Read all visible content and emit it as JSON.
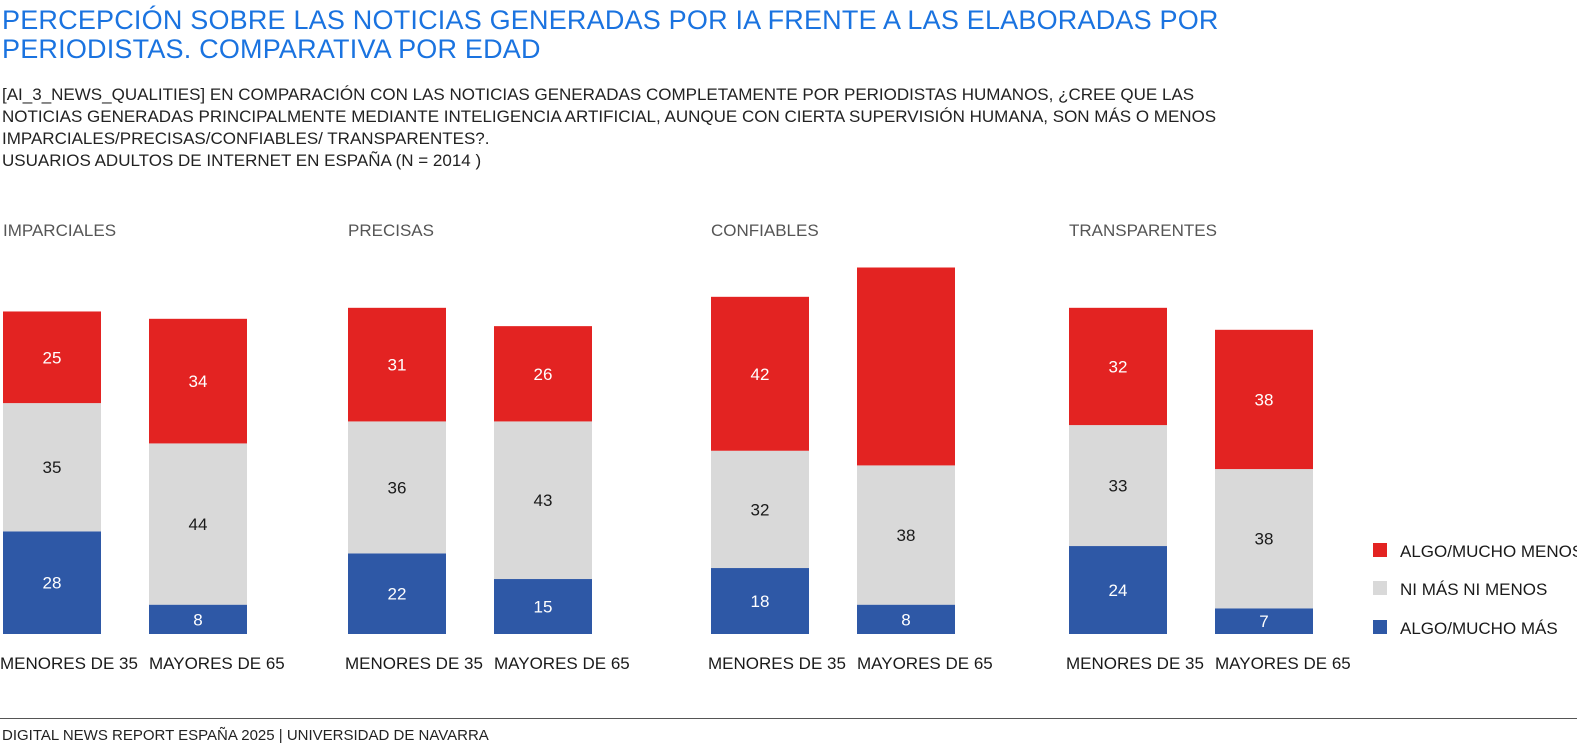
{
  "title": "PERCEPCIÓN SOBRE LAS NOTICIAS GENERADAS POR IA FRENTE A LAS ELABORADAS POR PERIODISTAS. COMPARATIVA POR EDAD",
  "subtitle": "[AI_3_NEWS_QUALITIES] EN COMPARACIÓN CON LAS NOTICIAS GENERADAS COMPLETAMENTE POR PERIODISTAS HUMANOS,  ¿CREE QUE LAS NOTICIAS GENERADAS PRINCIPALMENTE MEDIANTE INTELIGENCIA ARTIFICIAL, AUNQUE CON CIERTA SUPERVISIÓN HUMANA, SON MÁS O MENOS IMPARCIALES/PRECISAS/CONFIABLES/ TRANSPARENTES?.",
  "subtitle2": "USUARIOS ADULTOS DE INTERNET EN ESPAÑA (N = 2014 )",
  "footer": "DIGITAL NEWS REPORT ESPAÑA 2025 | UNIVERSIDAD DE NAVARRA",
  "colors": {
    "title": "#1a73e0",
    "less": "#e32322",
    "neutral": "#d9d9d9",
    "more": "#2e58a6"
  },
  "chart_data": {
    "type": "bar",
    "stacked": true,
    "value_unit": "%",
    "legend_placement": "right",
    "categories": [
      "MENORES DE 35",
      "MAYORES DE 65"
    ],
    "legend": [
      {
        "key": "less",
        "label": "ALGO/MUCHO MENOS"
      },
      {
        "key": "neutral",
        "label": "NI MÁS NI MENOS"
      },
      {
        "key": "more",
        "label": "ALGO/MUCHO MÁS"
      }
    ],
    "panels": [
      {
        "title": "IMPARCIALES",
        "series": [
          {
            "name": "ALGO/MUCHO MÁS",
            "key": "more",
            "values": [
              28,
              8
            ]
          },
          {
            "name": "NI MÁS NI MENOS",
            "key": "neutral",
            "values": [
              35,
              44
            ]
          },
          {
            "name": "ALGO/MUCHO MENOS",
            "key": "less",
            "values": [
              25,
              34
            ]
          }
        ]
      },
      {
        "title": "PRECISAS",
        "series": [
          {
            "name": "ALGO/MUCHO MÁS",
            "key": "more",
            "values": [
              22,
              15
            ]
          },
          {
            "name": "NI MÁS NI MENOS",
            "key": "neutral",
            "values": [
              36,
              43
            ]
          },
          {
            "name": "ALGO/MUCHO MENOS",
            "key": "less",
            "values": [
              31,
              26
            ]
          }
        ]
      },
      {
        "title": "CONFIABLES",
        "series": [
          {
            "name": "ALGO/MUCHO MÁS",
            "key": "more",
            "values": [
              18,
              8
            ]
          },
          {
            "name": "NI MÁS NI MENOS",
            "key": "neutral",
            "values": [
              32,
              38
            ]
          },
          {
            "name": "ALGO/MUCHO MENOS",
            "key": "less",
            "values": [
              42,
              null
            ]
          }
        ]
      },
      {
        "title": "TRANSPARENTES",
        "series": [
          {
            "name": "ALGO/MUCHO MÁS",
            "key": "more",
            "values": [
              24,
              7
            ]
          },
          {
            "name": "NI MÁS NI MENOS",
            "key": "neutral",
            "values": [
              33,
              38
            ]
          },
          {
            "name": "ALGO/MUCHO MENOS",
            "key": "less",
            "values": [
              32,
              38
            ]
          }
        ]
      }
    ]
  }
}
